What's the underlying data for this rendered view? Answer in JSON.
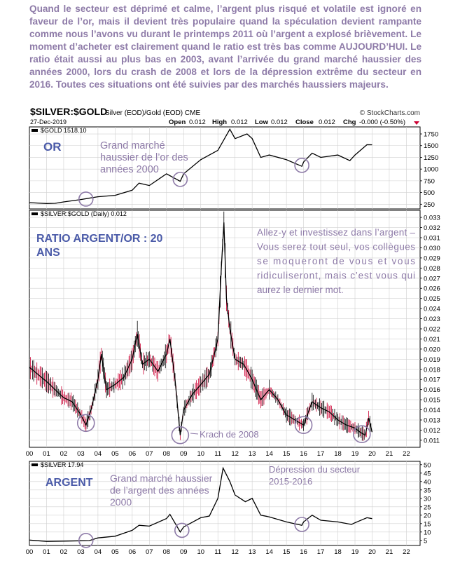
{
  "intro_text": "Quand le secteur est déprimé et calme, l’argent plus risqué et volatile est ignoré en faveur de l’or, mais il devient très populaire quand la spéculation devient rampante comme nous l’avons vu durant le printemps 2011 où l’argent a explosé brièvement. Le moment d’acheter est clairement quand le ratio est très bas comme AUJOURD’HUI. Le ratio était aussi au plus bas en 2003, avant l’arrivée du grand marché haussier des années 2000, lors du crash de 2008 et lors de la dépression extrême du secteur en 2016. Toutes ces situations ont été suivies par des marchés haussiers majeurs.",
  "header": {
    "symbol": "$SILVER:$GOLD",
    "description": "Silver (EOD)/Gold (EOD) CME",
    "watermark": "© StockCharts.com",
    "date": "27-Dec-2019",
    "quote": {
      "open_label": "Open",
      "open": "0.012",
      "high_label": "High",
      "high": "0.012",
      "low_label": "Low",
      "low": "0.012",
      "close_label": "Close",
      "close": "0.012",
      "chg_label": "Chg",
      "chg": "-0.000 (-0.50%)"
    }
  },
  "colors": {
    "price_line": "#000000",
    "ratio_down": "#cc0033",
    "annotation": "#8e7ba8",
    "title": "#4a5aa8",
    "grid": "#d0d0d0"
  },
  "chart_data": [
    {
      "type": "line",
      "panel_label": "$GOLD 1518.10",
      "annotation_title": "OR",
      "annotation": "Grand marché haussier de l’or des années 2000",
      "x": [
        2000,
        2001,
        2001.5,
        2002,
        2003,
        2004,
        2005,
        2006,
        2006.4,
        2007,
        2008,
        2008.8,
        2009,
        2010,
        2011,
        2011.7,
        2012,
        2012.7,
        2013,
        2013.5,
        2014,
        2015,
        2015.9,
        2016,
        2016.5,
        2017,
        2018,
        2018.7,
        2019,
        2019.7,
        2020
      ],
      "y": [
        285,
        265,
        270,
        300,
        350,
        410,
        440,
        550,
        700,
        650,
        900,
        740,
        900,
        1200,
        1400,
        1850,
        1650,
        1750,
        1650,
        1250,
        1300,
        1200,
        1060,
        1150,
        1340,
        1250,
        1300,
        1180,
        1300,
        1520,
        1518
      ],
      "yticks": [
        250,
        500,
        750,
        1000,
        1250,
        1500,
        1750
      ],
      "ylim": [
        150,
        1900
      ],
      "circles": [
        {
          "x": 2003.3,
          "y": 360
        },
        {
          "x": 2008.8,
          "y": 780
        },
        {
          "x": 2015.9,
          "y": 1080
        }
      ]
    },
    {
      "type": "line",
      "panel_label": "$SILVER:$GOLD (Daily) 0.012",
      "annotation_title": "RATIO ARGENT/OR : 20 ANS",
      "annotation": "Allez-y et investissez dans l’argent – Vous serez tout seul, vos collègues se moqueront de vous et vous ridiculiseront, mais c’est vous qui aurez le dernier mot.",
      "crash_label": "Krach de 2008",
      "x": [
        2000,
        2000.5,
        2001,
        2001.5,
        2002,
        2002.5,
        2003,
        2003.3,
        2003.6,
        2004,
        2004.2,
        2004.5,
        2005,
        2005.5,
        2006,
        2006.3,
        2006.6,
        2007,
        2007.5,
        2008,
        2008.2,
        2008.5,
        2008.8,
        2009,
        2009.5,
        2010,
        2010.5,
        2011,
        2011.2,
        2011.35,
        2011.5,
        2011.7,
        2012,
        2012.5,
        2013,
        2013.5,
        2014,
        2014.5,
        2015,
        2015.5,
        2016,
        2016.5,
        2017,
        2017.5,
        2018,
        2018.5,
        2019,
        2019.3,
        2019.6,
        2019.8,
        2020
      ],
      "y": [
        0.0182,
        0.0175,
        0.0168,
        0.016,
        0.0152,
        0.0148,
        0.0135,
        0.0125,
        0.014,
        0.017,
        0.0195,
        0.016,
        0.0165,
        0.0172,
        0.019,
        0.0215,
        0.0185,
        0.019,
        0.0178,
        0.0195,
        0.021,
        0.017,
        0.0115,
        0.014,
        0.0155,
        0.0165,
        0.0175,
        0.021,
        0.028,
        0.0325,
        0.025,
        0.022,
        0.019,
        0.0185,
        0.017,
        0.015,
        0.016,
        0.015,
        0.0135,
        0.013,
        0.0125,
        0.0148,
        0.0142,
        0.0138,
        0.013,
        0.0125,
        0.0122,
        0.0118,
        0.0115,
        0.0132,
        0.0118
      ],
      "yticks": [
        0.011,
        0.012,
        0.013,
        0.014,
        0.015,
        0.016,
        0.017,
        0.018,
        0.019,
        0.02,
        0.021,
        0.022,
        0.023,
        0.024,
        0.025,
        0.026,
        0.027,
        0.028,
        0.029,
        0.03,
        0.031,
        0.032,
        0.033
      ],
      "ylim": [
        0.0103,
        0.0337
      ],
      "circles": [
        {
          "x": 2003.3,
          "y": 0.0127
        },
        {
          "x": 2008.8,
          "y": 0.0115
        },
        {
          "x": 2016.0,
          "y": 0.0125
        },
        {
          "x": 2019.4,
          "y": 0.0116
        }
      ]
    },
    {
      "type": "line",
      "panel_label": "$SILVER 17.94",
      "annotation_title": "ARGENT",
      "annotation": "Grand marché haussier de l’argent des années 2000",
      "annotation_2": "Dépression du secteur 2015-2016",
      "x": [
        2000,
        2001,
        2002,
        2003,
        2003.5,
        2004,
        2005,
        2006,
        2006.4,
        2007,
        2008,
        2008.2,
        2008.8,
        2009,
        2010,
        2010.5,
        2011,
        2011.3,
        2011.7,
        2012,
        2012.6,
        2013,
        2013.5,
        2014,
        2015,
        2015.9,
        2016,
        2016.5,
        2017,
        2018,
        2018.8,
        2019,
        2019.7,
        2020
      ],
      "y": [
        5.2,
        4.4,
        4.6,
        4.8,
        4.9,
        6.5,
        7.5,
        11.0,
        14.0,
        13.5,
        18.0,
        20.5,
        10.0,
        13.0,
        18.5,
        19.5,
        30.0,
        48.0,
        40.0,
        32.0,
        28.0,
        30.0,
        20.0,
        19.0,
        16.0,
        14.0,
        16.0,
        20.0,
        17.0,
        16.0,
        14.5,
        15.5,
        18.5,
        17.94
      ],
      "yticks": [
        5,
        10,
        15,
        20,
        25,
        30,
        35,
        40,
        45,
        50
      ],
      "ylim": [
        2,
        52
      ],
      "circles": [
        {
          "x": 2003.3,
          "y": 5.0
        },
        {
          "x": 2008.9,
          "y": 11.0
        },
        {
          "x": 2015.9,
          "y": 14.5
        }
      ]
    }
  ],
  "x_ticks": [
    "00",
    "01",
    "02",
    "03",
    "04",
    "05",
    "06",
    "07",
    "08",
    "09",
    "10",
    "11",
    "12",
    "13",
    "14",
    "15",
    "16",
    "17",
    "18",
    "19",
    "20",
    "21",
    "22"
  ]
}
